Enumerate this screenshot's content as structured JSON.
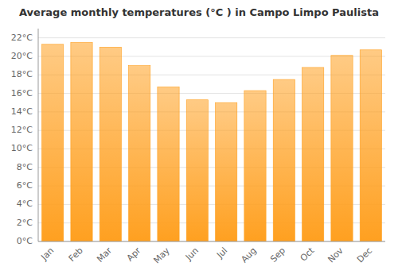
{
  "chart_data": {
    "type": "bar",
    "title": "Average monthly temperatures (°C ) in Campo Limpo Paulista",
    "categories": [
      "Jan",
      "Feb",
      "Mar",
      "Apr",
      "May",
      "Jun",
      "Jul",
      "Aug",
      "Sep",
      "Oct",
      "Nov",
      "Dec"
    ],
    "values": [
      21.3,
      21.5,
      21.0,
      19.0,
      16.7,
      15.3,
      15.0,
      16.3,
      17.5,
      18.8,
      20.1,
      20.7
    ],
    "color": "#FFA020",
    "ylim": [
      0,
      23
    ],
    "yticks": [
      {
        "value": 0,
        "label": "0°C"
      },
      {
        "value": 2,
        "label": "2°C"
      },
      {
        "value": 4,
        "label": "4°C"
      },
      {
        "value": 6,
        "label": "6°C"
      },
      {
        "value": 8,
        "label": "8°C"
      },
      {
        "value": 10,
        "label": "10°C"
      },
      {
        "value": 12,
        "label": "12°C"
      },
      {
        "value": 14,
        "label": "14°C"
      },
      {
        "value": 16,
        "label": "16°C"
      },
      {
        "value": 18,
        "label": "18°C"
      },
      {
        "value": 20,
        "label": "20°C"
      },
      {
        "value": 22,
        "label": "22°C"
      }
    ],
    "grid": true
  }
}
